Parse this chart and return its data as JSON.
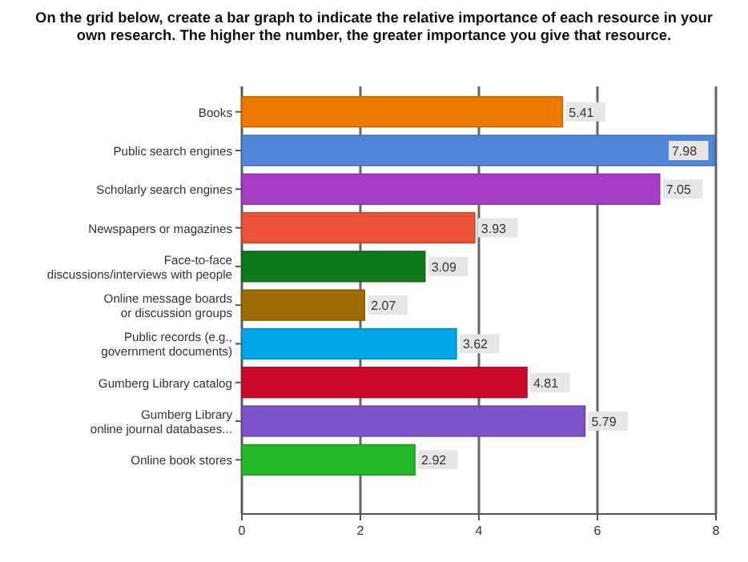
{
  "chart_data": {
    "type": "bar",
    "orientation": "horizontal",
    "title": "On the grid below, create a bar graph to indicate the relative importance of each resource in your\nown research.  The higher the number, the greater importance you give that resource.",
    "categories": [
      "Books",
      "Public search engines",
      "Scholarly search engines",
      "Newspapers or magazines",
      "Face-to-face\ndiscussions/interviews with people",
      "Online message boards\nor discussion groups",
      "Public records (e.g.,\ngovernment documents)",
      "Gumberg Library catalog",
      "Gumberg Library\nonline journal databases...",
      "Online book stores"
    ],
    "values": [
      5.41,
      7.98,
      7.05,
      3.93,
      3.09,
      2.07,
      3.62,
      4.81,
      5.79,
      2.92
    ],
    "colors": [
      "#ee7a00",
      "#4f86da",
      "#a63dc4",
      "#ea5336",
      "#0e7a1a",
      "#a06c06",
      "#00a6e6",
      "#cc0a2c",
      "#7b52c8",
      "#22b92a"
    ],
    "xlim": [
      0,
      8
    ],
    "xticks": [
      0,
      2,
      4,
      6,
      8
    ],
    "grid": "x",
    "data_labels": true
  }
}
